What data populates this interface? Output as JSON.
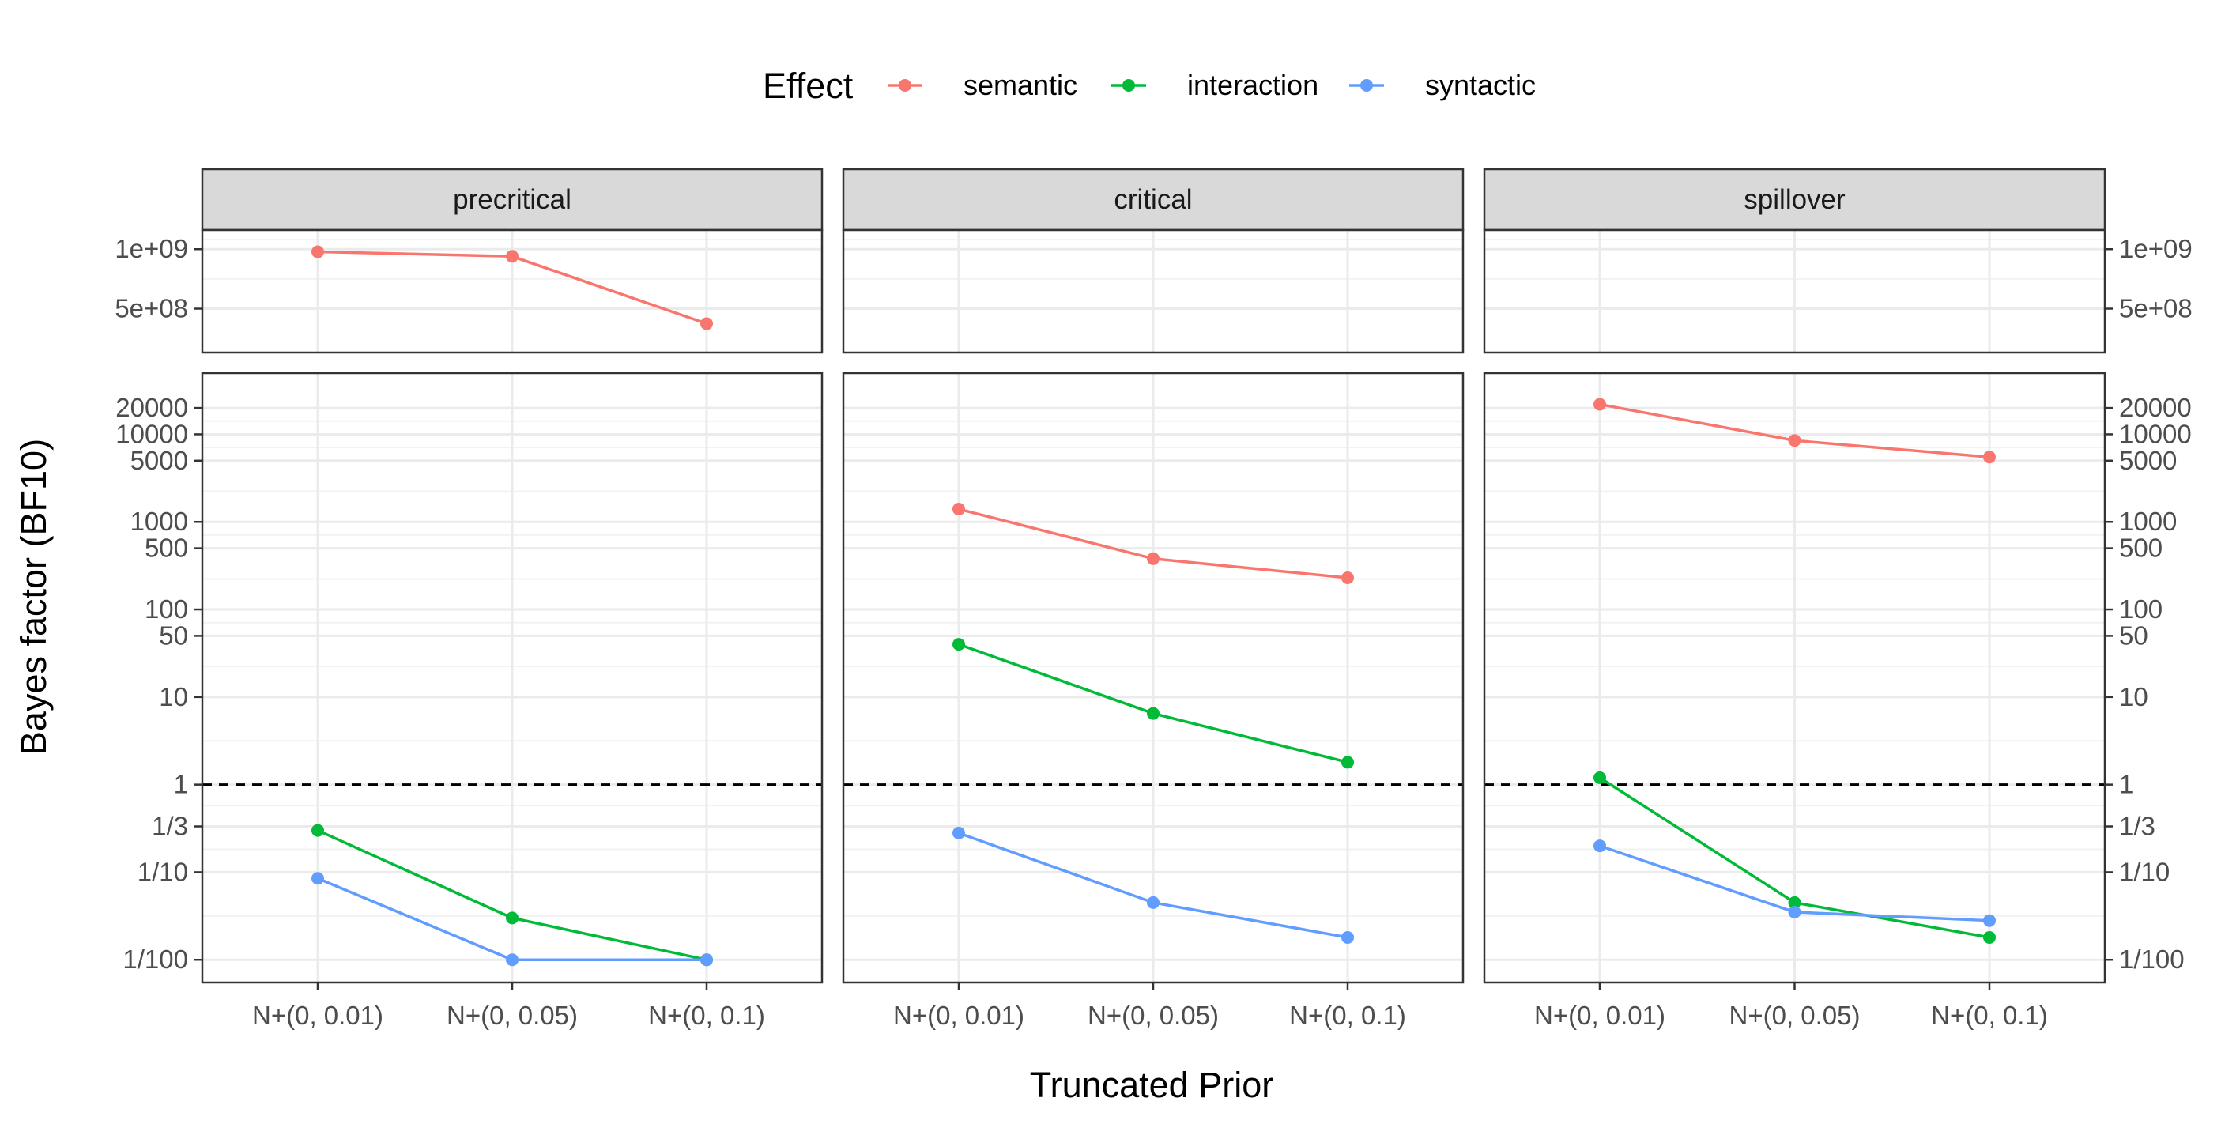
{
  "chart_data": {
    "type": "line",
    "xlabel": "Truncated Prior",
    "ylabel": "Bayes factor (BF10)",
    "legend": {
      "title": "Effect",
      "position": "top",
      "entries": [
        {
          "name": "semantic",
          "color": "#F8766D"
        },
        {
          "name": "interaction",
          "color": "#00BA38"
        },
        {
          "name": "syntactic",
          "color": "#619CFF"
        }
      ]
    },
    "categories": [
      "N+(0, 0.01)",
      "N+(0, 0.05)",
      "N+(0, 0.1)"
    ],
    "facets": [
      "precritical",
      "critical",
      "spillover"
    ],
    "y_scale": "log10",
    "upper_ylim": [
      300000000,
      1250000000
    ],
    "upper_ticks": [
      {
        "value": 1000000000,
        "label": "1e+09"
      },
      {
        "value": 500000000,
        "label": "5e+08"
      }
    ],
    "lower_ylim": [
      0.0055,
      50000
    ],
    "lower_ticks": [
      {
        "value": 20000,
        "label": "20000"
      },
      {
        "value": 10000,
        "label": "10000"
      },
      {
        "value": 5000,
        "label": "5000"
      },
      {
        "value": 1000,
        "label": "1000"
      },
      {
        "value": 500,
        "label": "500"
      },
      {
        "value": 100,
        "label": "100"
      },
      {
        "value": 50,
        "label": "50"
      },
      {
        "value": 10,
        "label": "10"
      },
      {
        "value": 1,
        "label": "1"
      },
      {
        "value": 0.3333,
        "label": "1/3"
      },
      {
        "value": 0.1,
        "label": "1/10"
      },
      {
        "value": 0.01,
        "label": "1/100"
      }
    ],
    "reference_line": 1,
    "grid": true,
    "series": [
      {
        "facet": "precritical",
        "effect": "semantic",
        "panel": "upper",
        "values": [
          970000000,
          920000000,
          420000000
        ]
      },
      {
        "facet": "precritical",
        "effect": "interaction",
        "panel": "lower",
        "values": [
          0.3,
          0.03,
          0.01
        ]
      },
      {
        "facet": "precritical",
        "effect": "syntactic",
        "panel": "lower",
        "values": [
          0.085,
          0.01,
          0.01
        ]
      },
      {
        "facet": "critical",
        "effect": "semantic",
        "panel": "lower",
        "values": [
          1400,
          380,
          230
        ]
      },
      {
        "facet": "critical",
        "effect": "interaction",
        "panel": "lower",
        "values": [
          40,
          6.5,
          1.8
        ]
      },
      {
        "facet": "critical",
        "effect": "syntactic",
        "panel": "lower",
        "values": [
          0.28,
          0.045,
          0.018
        ]
      },
      {
        "facet": "spillover",
        "effect": "semantic",
        "panel": "lower",
        "values": [
          22000,
          8500,
          5500
        ]
      },
      {
        "facet": "spillover",
        "effect": "interaction",
        "panel": "lower",
        "values": [
          1.2,
          0.045,
          0.018
        ]
      },
      {
        "facet": "spillover",
        "effect": "syntactic",
        "panel": "lower",
        "values": [
          0.2,
          0.035,
          0.028
        ]
      }
    ]
  }
}
